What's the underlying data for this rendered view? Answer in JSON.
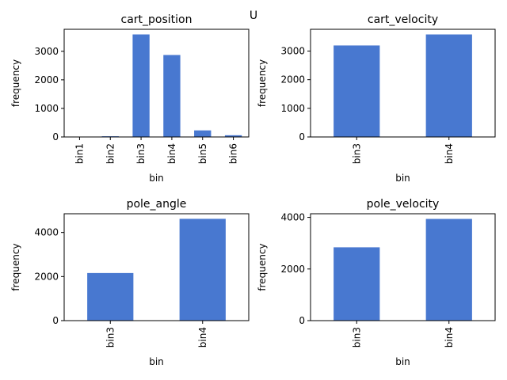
{
  "figure": {
    "suptitle": "U"
  },
  "chart_data": [
    {
      "type": "bar",
      "title": "cart_position",
      "xlabel": "bin",
      "ylabel": "frequency",
      "categories": [
        "bin1",
        "bin2",
        "bin3",
        "bin4",
        "bin5",
        "bin6"
      ],
      "values": [
        5,
        25,
        3590,
        2870,
        230,
        60
      ],
      "ylim": [
        0,
        3770
      ],
      "yticks": [
        0,
        1000,
        2000,
        3000
      ],
      "bar_color": "#4878d0",
      "grid": false
    },
    {
      "type": "bar",
      "title": "cart_velocity",
      "xlabel": "bin",
      "ylabel": "frequency",
      "categories": [
        "bin3",
        "bin4"
      ],
      "values": [
        3195,
        3580
      ],
      "ylim": [
        0,
        3760
      ],
      "yticks": [
        0,
        1000,
        2000,
        3000
      ],
      "bar_color": "#4878d0",
      "grid": false
    },
    {
      "type": "bar",
      "title": "pole_angle",
      "xlabel": "bin",
      "ylabel": "frequency",
      "categories": [
        "bin3",
        "bin4"
      ],
      "values": [
        2160,
        4620
      ],
      "ylim": [
        0,
        4850
      ],
      "yticks": [
        0,
        2000,
        4000
      ],
      "bar_color": "#4878d0",
      "grid": false
    },
    {
      "type": "bar",
      "title": "pole_velocity",
      "xlabel": "bin",
      "ylabel": "frequency",
      "categories": [
        "bin3",
        "bin4"
      ],
      "values": [
        2840,
        3940
      ],
      "ylim": [
        0,
        4140
      ],
      "yticks": [
        0,
        2000,
        4000
      ],
      "bar_color": "#4878d0",
      "grid": false
    }
  ]
}
